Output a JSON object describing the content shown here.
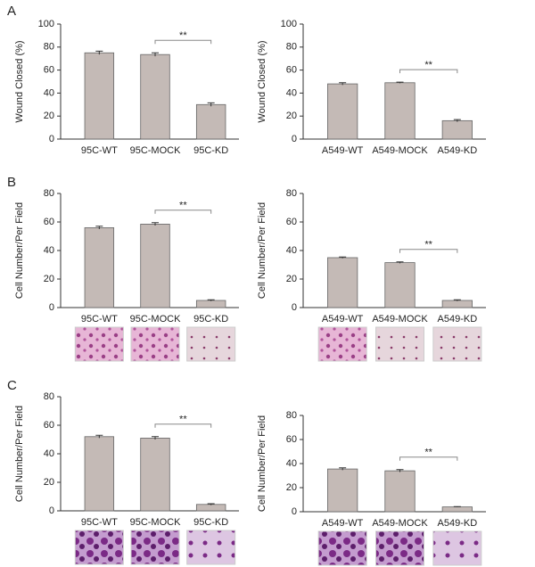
{
  "panels": [
    "A",
    "B",
    "C"
  ],
  "chart_data": [
    {
      "type": "bar",
      "ylabel": "Wound Closed (%)",
      "categories": [
        "95C-WT",
        "95C-MOCK",
        "95C-KD"
      ],
      "values": [
        75,
        73.5,
        30
      ],
      "errors": [
        1.5,
        1.5,
        1.5
      ],
      "color": "#c4bab6",
      "ylim": [
        0,
        100
      ],
      "yticks": [
        0,
        20,
        40,
        60,
        80,
        100
      ],
      "annotation": "**"
    },
    {
      "type": "bar",
      "ylabel": "Wound Closed (%)",
      "categories": [
        "A549-WT",
        "A549-MOCK",
        "A549-KD"
      ],
      "values": [
        48,
        49,
        16
      ],
      "errors": [
        1,
        0.5,
        1
      ],
      "color": "#c4bab6",
      "ylim": [
        0,
        100
      ],
      "yticks": [
        0,
        20,
        40,
        60,
        80,
        100
      ],
      "annotation": "**"
    },
    {
      "type": "bar",
      "ylabel": "Cell Number/Per Field",
      "categories": [
        "95C-WT",
        "95C-MOCK",
        "95C-KD"
      ],
      "values": [
        56,
        58.5,
        5
      ],
      "errors": [
        1,
        1,
        0.5
      ],
      "color": "#c4bab6",
      "ylim": [
        0,
        80
      ],
      "yticks": [
        0,
        20,
        40,
        60,
        80
      ],
      "annotation": "**"
    },
    {
      "type": "bar",
      "ylabel": "Cell Number/Per Field",
      "categories": [
        "A549-WT",
        "A549-MOCK",
        "A549-KD"
      ],
      "values": [
        35,
        31.5,
        5
      ],
      "errors": [
        0.5,
        0.5,
        0.5
      ],
      "color": "#c4bab6",
      "ylim": [
        0,
        80
      ],
      "yticks": [
        0,
        20,
        40,
        60,
        80
      ],
      "annotation": "**"
    },
    {
      "type": "bar",
      "ylabel": "Cell Number/Per Field",
      "categories": [
        "95C-WT",
        "95C-MOCK",
        "95C-KD"
      ],
      "values": [
        52,
        51,
        4.5
      ],
      "errors": [
        1,
        1,
        0.5
      ],
      "color": "#c4bab6",
      "ylim": [
        0,
        80
      ],
      "yticks": [
        0,
        20,
        40,
        60,
        80
      ],
      "annotation": "**"
    },
    {
      "type": "bar",
      "ylabel": "Cell Number/Per Field",
      "categories": [
        "A549-WT",
        "A549-MOCK",
        "A549-KD"
      ],
      "values": [
        35.5,
        34,
        4
      ],
      "errors": [
        1,
        1,
        0.3
      ],
      "color": "#c4bab6",
      "ylim": [
        0,
        80
      ],
      "yticks": [
        0,
        20,
        40,
        60,
        80
      ],
      "annotation": "**"
    }
  ]
}
